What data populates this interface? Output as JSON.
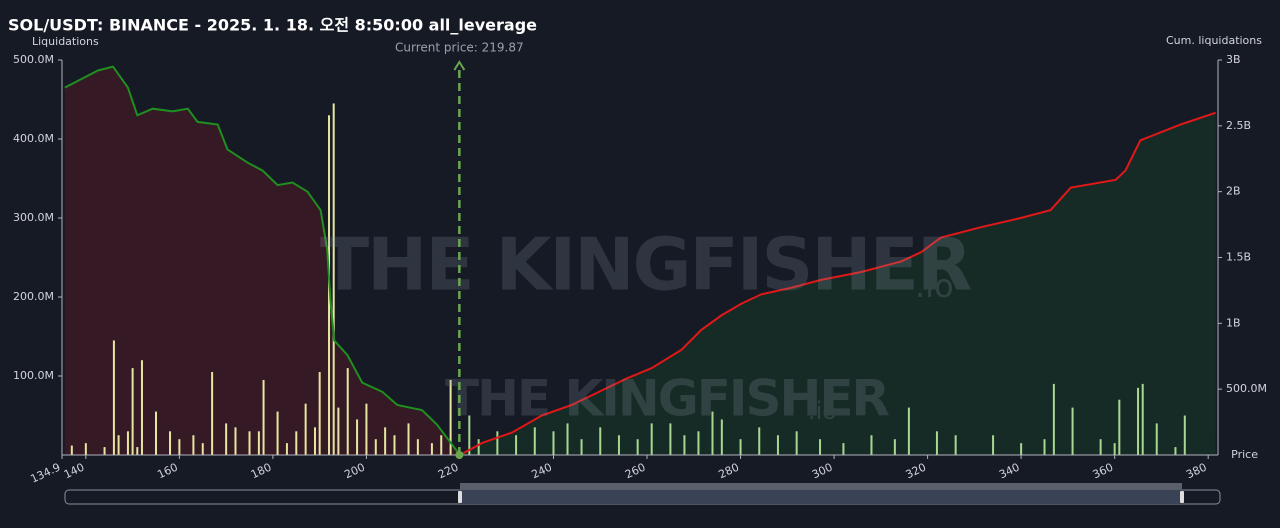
{
  "chart_data": {
    "type": "combo",
    "title": "SOL/USDT: BINANCE - 2025. 1. 18. 오전 8:50:00 all_leverage",
    "y_label": "Liquidations",
    "y2_label": "Cum. liquidations",
    "x_label": "Price",
    "watermark": {
      "main": "THE KINGFISHER",
      "suffix": ".io"
    },
    "current_price": {
      "value": 219.87,
      "label": "Current price: 219.87",
      "color": "#6aa84f"
    },
    "xlim": [
      134.9,
      382.1
    ],
    "xticks": [
      134.9,
      140,
      160,
      180,
      200,
      220,
      240,
      260,
      280,
      300,
      320,
      340,
      360,
      380
    ],
    "ylim": [
      0,
      500000000
    ],
    "yticks": [
      {
        "value": 100000000,
        "label": "100.0M"
      },
      {
        "value": 200000000,
        "label": "200.0M"
      },
      {
        "value": 300000000,
        "label": "300.0M"
      },
      {
        "value": 400000000,
        "label": "400.0M"
      },
      {
        "value": 500000000,
        "label": "500.0M"
      }
    ],
    "y2lim": [
      0,
      3000000000
    ],
    "y2ticks": [
      {
        "value": 500000000,
        "label": "500.0M"
      },
      {
        "value": 1000000000,
        "label": "1B"
      },
      {
        "value": 1500000000,
        "label": "1.5B"
      },
      {
        "value": 2000000000,
        "label": "2B"
      },
      {
        "value": 2500000000,
        "label": "2.5B"
      },
      {
        "value": 3000000000,
        "label": "3B"
      }
    ],
    "series": [
      {
        "type": "bar",
        "color": "#e6e6a0",
        "x": [
          137,
          140,
          144,
          146,
          147,
          149,
          150,
          151,
          152,
          155,
          158,
          160,
          163,
          165,
          167,
          170,
          172,
          175,
          177,
          178,
          181,
          183,
          185,
          187,
          189,
          190,
          192,
          193,
          194,
          196,
          198,
          200,
          202,
          204,
          206,
          209,
          211,
          214,
          216,
          218
        ],
        "values": [
          12000000,
          15000000,
          10000000,
          145000000,
          25000000,
          30000000,
          110000000,
          10000000,
          120000000,
          55000000,
          30000000,
          20000000,
          25000000,
          15000000,
          105000000,
          40000000,
          35000000,
          30000000,
          30000000,
          95000000,
          55000000,
          15000000,
          30000000,
          65000000,
          35000000,
          105000000,
          430000000,
          445000000,
          60000000,
          110000000,
          45000000,
          65000000,
          20000000,
          35000000,
          25000000,
          40000000,
          20000000,
          15000000,
          25000000,
          95000000
        ]
      },
      {
        "type": "bar",
        "color": "#a8d890",
        "x": [
          222,
          224,
          228,
          232,
          236,
          240,
          243,
          246,
          250,
          254,
          258,
          261,
          265,
          268,
          271,
          274,
          276,
          280,
          284,
          288,
          292,
          297,
          302,
          308,
          313,
          316,
          322,
          326,
          334,
          340,
          345,
          347,
          351,
          357,
          360,
          361,
          365,
          366,
          369,
          373,
          375
        ],
        "values": [
          50000000,
          20000000,
          30000000,
          25000000,
          35000000,
          30000000,
          40000000,
          20000000,
          35000000,
          25000000,
          20000000,
          40000000,
          40000000,
          25000000,
          30000000,
          55000000,
          45000000,
          20000000,
          35000000,
          25000000,
          30000000,
          20000000,
          15000000,
          25000000,
          20000000,
          60000000,
          30000000,
          25000000,
          25000000,
          15000000,
          20000000,
          90000000,
          60000000,
          20000000,
          15000000,
          70000000,
          85000000,
          90000000,
          40000000,
          10000000,
          50000000
        ]
      },
      {
        "type": "line",
        "axis": "y2",
        "color": "#1f8f1f",
        "fill": "rgba(90,25,35,0.45)",
        "x": [
          135.5,
          142.6,
          145.8,
          149,
          151,
          154.3,
          158.6,
          161.8,
          163.9,
          168.2,
          170.3,
          174.6,
          177.8,
          181,
          184.2,
          187.4,
          190.2,
          191.6,
          192.3,
          193.1,
          195.9,
          199.1,
          203.4,
          206.6,
          211.9,
          215.1,
          218.3,
          220
        ],
        "values": [
          2790000000,
          2920000000,
          2950000000,
          2790000000,
          2580000000,
          2630000000,
          2610000000,
          2630000000,
          2530000000,
          2510000000,
          2320000000,
          2220000000,
          2160000000,
          2050000000,
          2070000000,
          2000000000,
          1860000000,
          1560000000,
          1180000000,
          870000000,
          760000000,
          550000000,
          480000000,
          380000000,
          340000000,
          230000000,
          80000000,
          0
        ]
      },
      {
        "type": "line",
        "axis": "y2",
        "color": "#e01818",
        "fill": "rgba(25,70,40,0.4)",
        "x": [
          220,
          224.7,
          231.1,
          237.5,
          243.9,
          250.3,
          255.6,
          261,
          267.4,
          271.6,
          275.9,
          280.2,
          284.4,
          290.8,
          297.2,
          305.8,
          314.3,
          318.6,
          322.8,
          331.4,
          339.9,
          346.3,
          350.6,
          360.2,
          362.3,
          365.5,
          374.1,
          381.6
        ],
        "values": [
          0,
          90000000,
          170000000,
          300000000,
          380000000,
          490000000,
          580000000,
          660000000,
          800000000,
          950000000,
          1060000000,
          1150000000,
          1220000000,
          1270000000,
          1330000000,
          1390000000,
          1470000000,
          1540000000,
          1650000000,
          1730000000,
          1800000000,
          1860000000,
          2030000000,
          2090000000,
          2160000000,
          2390000000,
          2510000000,
          2600000000
        ]
      }
    ]
  }
}
